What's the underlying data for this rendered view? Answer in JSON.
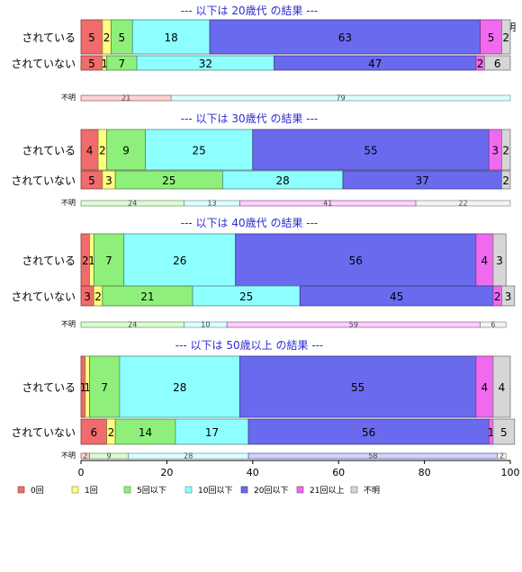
{
  "chart_data": {
    "type": "bar",
    "orientation": "horizontal",
    "stacked": true,
    "xlim": [
      0,
      100
    ],
    "x_ticks": [
      0,
      20,
      40,
      60,
      80,
      100
    ],
    "category_names": [
      "0回",
      "1回",
      "5回以下",
      "10回以下",
      "20回以下",
      "21回以上",
      "不明"
    ],
    "category_colors": [
      "#f06b6b",
      "#ffff80",
      "#8ef07a",
      "#8effff",
      "#6a6aef",
      "#ef6aef",
      "#d6d6d6"
    ],
    "top_header_labels": [
      "0回",
      "1回",
      "5回..",
      "10回以下",
      "20回以下",
      "21",
      "不明"
    ],
    "legend": {
      "position": "bottom",
      "entries": [
        "0回",
        "1回",
        "5回以下",
        "10回以下",
        "20回以下",
        "21回以上",
        "不明"
      ]
    },
    "groups": [
      {
        "title": "--- 以下は 20歳代 の結果 ---",
        "bars": [
          {
            "label": "されている",
            "values": [
              5,
              2,
              5,
              18,
              63,
              5,
              2
            ],
            "value_labels": [
              "5",
              "2",
              "5",
              "18",
              "63",
              "5",
              "2"
            ]
          },
          {
            "label": "されていない",
            "values": [
              5,
              1,
              7,
              32,
              47,
              2,
              6
            ],
            "value_labels": [
              "5",
              "1",
              "7",
              "32",
              "47",
              "2",
              "6"
            ]
          }
        ],
        "unknown_bar": {
          "label": "不明",
          "values": [
            21,
            79
          ],
          "color_indices": [
            0,
            3
          ],
          "value_labels": [
            "21",
            "79"
          ]
        }
      },
      {
        "title": "--- 以下は 30歳代 の結果 ---",
        "bars": [
          {
            "label": "されている",
            "values": [
              4,
              2,
              9,
              25,
              55,
              3,
              2
            ],
            "value_labels": [
              "4",
              "2",
              "9",
              "25",
              "55",
              "3",
              "2"
            ]
          },
          {
            "label": "されていない",
            "values": [
              5,
              3,
              25,
              28,
              37,
              0,
              2
            ],
            "value_labels": [
              "5",
              "3",
              "25",
              "28",
              "37",
              "",
              "2"
            ]
          }
        ],
        "unknown_bar": {
          "label": "不明",
          "values": [
            24,
            13,
            41,
            22
          ],
          "color_indices": [
            2,
            3,
            5,
            6
          ],
          "value_labels": [
            "24",
            "13",
            "41",
            "22"
          ]
        }
      },
      {
        "title": "--- 以下は 40歳代 の結果 ---",
        "bars": [
          {
            "label": "されている",
            "values": [
              2,
              1,
              7,
              26,
              56,
              4,
              3
            ],
            "value_labels": [
              "2",
              "1",
              "7",
              "26",
              "56",
              "4",
              "3"
            ]
          },
          {
            "label": "されていない",
            "values": [
              3,
              2,
              21,
              25,
              45,
              2,
              3
            ],
            "value_labels": [
              "3",
              "2",
              "21",
              "25",
              "45",
              "2",
              "3"
            ]
          }
        ],
        "unknown_bar": {
          "label": "不明",
          "values": [
            24,
            10,
            59,
            6
          ],
          "color_indices": [
            2,
            3,
            5,
            6
          ],
          "value_labels": [
            "24",
            "10",
            "59",
            "6"
          ]
        }
      },
      {
        "title": "--- 以下は 50歳以上 の結果 ---",
        "bars": [
          {
            "label": "されている",
            "values": [
              1,
              1,
              7,
              28,
              55,
              4,
              4
            ],
            "value_labels": [
              "1",
              "1",
              "7",
              "28",
              "55",
              "4",
              "4"
            ]
          },
          {
            "label": "されていない",
            "values": [
              6,
              2,
              14,
              17,
              56,
              1,
              5
            ],
            "value_labels": [
              "6",
              "2",
              "14",
              "17",
              "56",
              "1",
              "5"
            ]
          }
        ],
        "unknown_bar": {
          "label": "不明",
          "values": [
            2,
            9,
            28,
            58,
            2
          ],
          "color_indices": [
            0,
            2,
            3,
            4,
            6
          ],
          "value_labels": [
            "2",
            "9",
            "28",
            "58",
            "2"
          ]
        }
      }
    ]
  }
}
